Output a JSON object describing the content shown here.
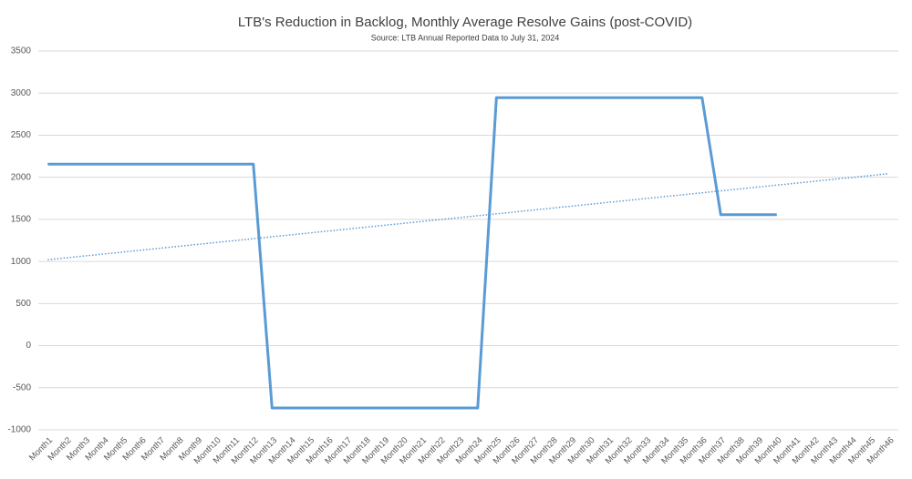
{
  "chart_data": {
    "type": "line",
    "title": "LTB's Reduction in Backlog, Monthly Average Resolve Gains (post-COVID)",
    "subtitle": "Source: LTB Annual Reported Data to July 31, 2024",
    "categories": [
      "Month1",
      "Month2",
      "Month3",
      "Month4",
      "Month5",
      "Month6",
      "Month7",
      "Month8",
      "Month9",
      "Month10",
      "Month11",
      "Month12",
      "Month13",
      "Month14",
      "Month15",
      "Month16",
      "Month17",
      "Month18",
      "Month19",
      "Month20",
      "Month21",
      "Month22",
      "Month23",
      "Month24",
      "Month25",
      "Month26",
      "Month27",
      "Month28",
      "Month29",
      "Month30",
      "Month31",
      "Month32",
      "Month33",
      "Month34",
      "Month35",
      "Month36",
      "Month37",
      "Month38",
      "Month39",
      "Month40",
      "Month41",
      "Month42",
      "Month43",
      "Month44",
      "Month45",
      "Month46"
    ],
    "series": [
      {
        "color": "#5b9bd5",
        "values": [
          2155,
          2155,
          2155,
          2155,
          2155,
          2155,
          2155,
          2155,
          2155,
          2155,
          2155,
          2155,
          -740,
          -740,
          -740,
          -740,
          -740,
          -740,
          -740,
          -740,
          -740,
          -740,
          -740,
          -740,
          2945,
          2945,
          2945,
          2945,
          2945,
          2945,
          2945,
          2945,
          2945,
          2945,
          2945,
          2945,
          1555,
          1555,
          1555,
          1555,
          null,
          null,
          null,
          null,
          null,
          null
        ]
      }
    ],
    "trendline": "linear",
    "ylim": [
      -1000,
      3500
    ],
    "yticks": [
      -1000,
      -500,
      0,
      500,
      1000,
      1500,
      2000,
      2500,
      3000,
      3500
    ],
    "grid": true
  }
}
